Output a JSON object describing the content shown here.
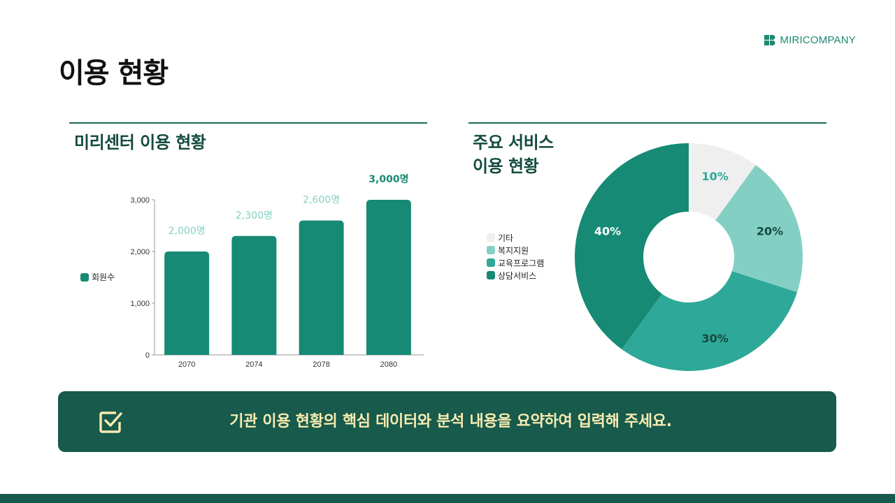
{
  "brand": {
    "name": "MIRICOMPANY",
    "icon": "miricompany-logo-icon"
  },
  "page": {
    "title": "이용 현황"
  },
  "left_panel": {
    "title": "미리센터 이용 현황"
  },
  "right_panel": {
    "title_line1": "주요 서비스",
    "title_line2": "이용 현황"
  },
  "colors": {
    "bar": "#178a75",
    "bar_label": "#86cfc3",
    "bar_label_highlight": "#178a75",
    "pie_etc": "#efefef",
    "pie_welfare": "#84cfc4",
    "pie_education": "#2ea898",
    "pie_counseling": "#168a74",
    "banner_bg": "#185a4c",
    "banner_text": "#f8ecb0"
  },
  "chart_data": [
    {
      "type": "bar",
      "categories": [
        "2070",
        "2074",
        "2078",
        "2080"
      ],
      "series": [
        {
          "name": "회원수",
          "values": [
            2000,
            2300,
            2600,
            3000
          ]
        }
      ],
      "data_labels": [
        "2,000명",
        "2,300명",
        "2,600명",
        "3,000명"
      ],
      "y_ticks": [
        "0",
        "1,000",
        "2,000",
        "3,000"
      ],
      "ylim": [
        0,
        3000
      ],
      "legend_position": "left"
    },
    {
      "type": "pie",
      "donut": true,
      "categories": [
        "기타",
        "복지지원",
        "교육프로그램",
        "상담서비스"
      ],
      "values": [
        10,
        20,
        30,
        40
      ],
      "data_labels": [
        "10%",
        "20%",
        "30%",
        "40%"
      ],
      "legend_position": "left"
    }
  ],
  "banner": {
    "text": "기관 이용 현황의 핵심 데이터와 분석 내용을 요약하여 입력해 주세요.",
    "icon": "checkbox-check-icon"
  }
}
